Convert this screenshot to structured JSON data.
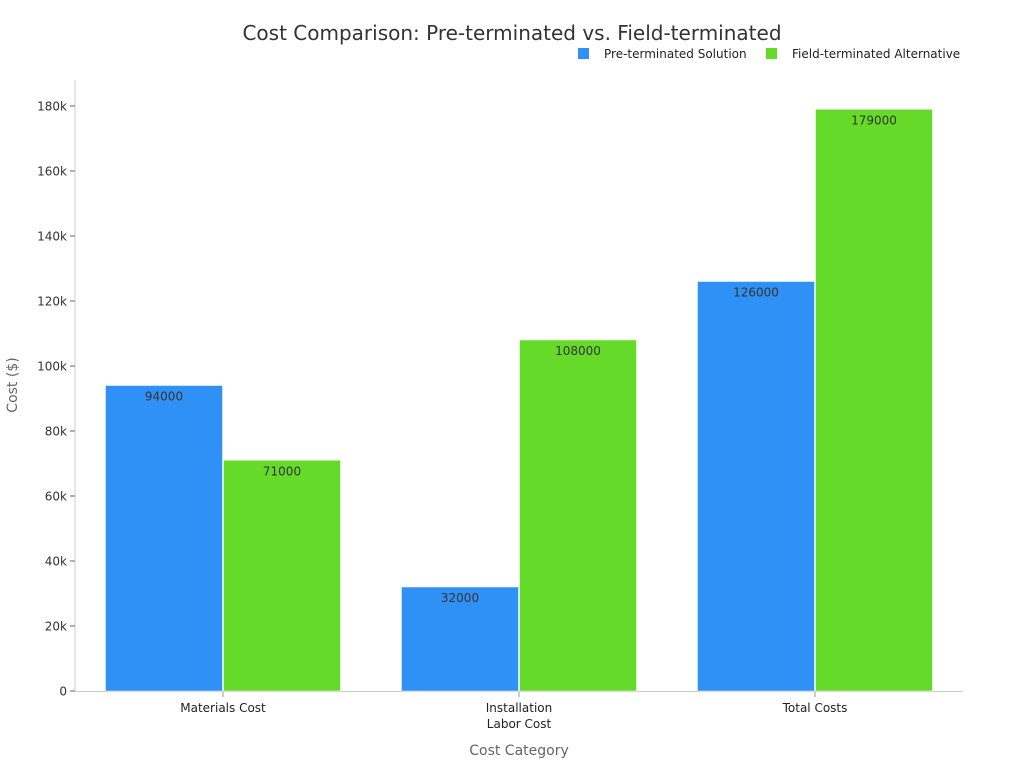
{
  "chart_data": {
    "type": "bar",
    "title": "Cost Comparison: Pre-terminated vs. Field-terminated",
    "xlabel": "Cost Category",
    "ylabel": "Cost ($)",
    "categories": [
      [
        "Materials Cost"
      ],
      [
        "Installation",
        "Labor Cost"
      ],
      [
        "Total Costs"
      ]
    ],
    "series": [
      {
        "name": "Pre-terminated Solution",
        "color": "#2f91f6",
        "values": [
          94000,
          32000,
          126000
        ]
      },
      {
        "name": "Field-terminated Alternative",
        "color": "#66da28",
        "values": [
          71000,
          108000,
          179000
        ]
      }
    ],
    "ylim": [
      0,
      188000
    ],
    "yticks": [
      0,
      20000,
      40000,
      60000,
      80000,
      100000,
      120000,
      140000,
      160000,
      180000
    ],
    "ytick_labels": [
      "0",
      "20k",
      "40k",
      "60k",
      "80k",
      "100k",
      "120k",
      "140k",
      "160k",
      "180k"
    ],
    "grid": false,
    "legend_position": "top-right",
    "data_labels": true
  }
}
